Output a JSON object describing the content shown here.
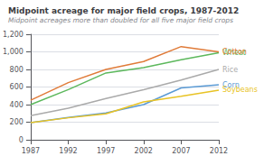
{
  "chart_data": {
    "type": "line",
    "title": "Midpoint acreage for major field crops, 1987-2012",
    "subtitle": "Midpoint acreages more than doubled for all five major field crops",
    "x": [
      1987,
      1992,
      1997,
      2002,
      2007,
      2012
    ],
    "series": [
      {
        "name": "Wheat",
        "color": "#5cb85c",
        "values": [
          400,
          570,
          760,
          820,
          910,
          990
        ]
      },
      {
        "name": "Cotton",
        "color": "#e07b39",
        "values": [
          450,
          650,
          800,
          890,
          1060,
          1000
        ]
      },
      {
        "name": "Rice",
        "color": "#aaaaaa",
        "values": [
          275,
          360,
          470,
          570,
          680,
          800
        ]
      },
      {
        "name": "Corn",
        "color": "#5b9bd5",
        "values": [
          195,
          255,
          305,
          400,
          590,
          625
        ]
      },
      {
        "name": "Soybeans",
        "color": "#e8c325",
        "values": [
          195,
          250,
          295,
          430,
          495,
          565
        ]
      }
    ],
    "xlim": [
      1987,
      2012
    ],
    "xticks": [
      1987,
      1992,
      1997,
      2002,
      2007,
      2012
    ],
    "ylim": [
      0,
      1200
    ],
    "yticks": [
      0,
      200,
      400,
      600,
      800,
      {
        "value": 1000,
        "label": "1,000"
      },
      {
        "value": 1200,
        "label": "1,200"
      }
    ],
    "grid": true
  }
}
